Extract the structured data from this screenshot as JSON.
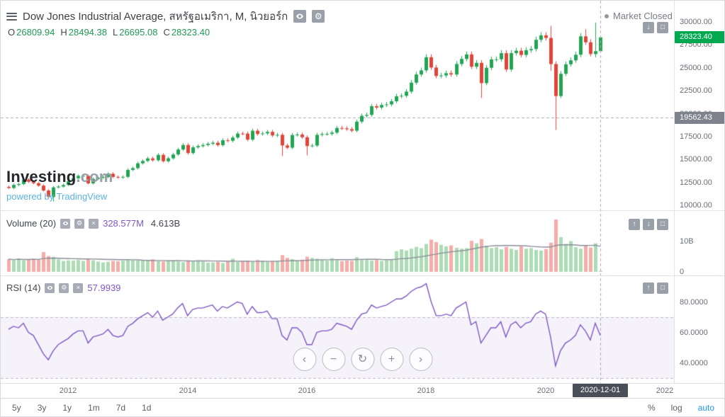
{
  "colors": {
    "up": "#23a455",
    "down": "#e0443a",
    "volume_up": "rgba(103,189,120,0.55)",
    "volume_down": "rgba(235,106,98,0.55)",
    "volume_ma": "#8a8e99",
    "rsi": "#7e57c2",
    "rsi_band_fill": "rgba(126,87,194,0.08)",
    "band_line": "#b6b9c4",
    "crosshair": "#a9adb8",
    "last_price_bg": "#00a84f",
    "price_line_bg": "#7e828d",
    "accent_blue": "#2196f3",
    "link_blue": "#5bb3e4",
    "ohlc_value": "#1f9954"
  },
  "header": {
    "title": "Dow Jones Industrial Average, สหรัฐอเมริกา, M, นิวยอร์ก",
    "market_status": "Market Closed",
    "ohlc": {
      "o_label": "O",
      "o": "26809.94",
      "h_label": "H",
      "h": "28494.38",
      "l_label": "L",
      "l": "26695.08",
      "c_label": "C",
      "c": "28323.40"
    }
  },
  "watermark": {
    "brand": "Investing",
    "suffix": ".com",
    "powered": "powered by TradingView"
  },
  "chart_data": [
    {
      "type": "candlestick",
      "name": "Dow Jones Industrial Average",
      "timeframe": "M",
      "x_start": "2011-01",
      "x_end": "2020-12",
      "y_axis": {
        "min": 9400,
        "max": 32300
      },
      "y_ticks": [
        "30000.00",
        "27500.00",
        "25000.00",
        "22500.00",
        "20000.00",
        "17500.00",
        "15000.00",
        "12500.00",
        "10000.00"
      ],
      "closes": [
        11892,
        12226,
        12320,
        12811,
        12570,
        12414,
        12143,
        11614,
        10913,
        11955,
        12046,
        12218,
        12633,
        12952,
        13212,
        13214,
        12393,
        12880,
        13009,
        13091,
        13437,
        13096,
        13026,
        13104,
        13861,
        14054,
        14579,
        14840,
        15116,
        14910,
        15500,
        14810,
        15130,
        15546,
        16086,
        16577,
        15699,
        16322,
        16458,
        16581,
        16717,
        16827,
        16563,
        17098,
        17043,
        17391,
        17828,
        17823,
        17165,
        18133,
        17776,
        17841,
        18011,
        17620,
        17690,
        16528,
        16285,
        17664,
        17720,
        17425,
        16466,
        16517,
        17685,
        17774,
        17787,
        17930,
        18432,
        18401,
        18308,
        18142,
        19124,
        19763,
        19864,
        20812,
        20663,
        20941,
        21009,
        21350,
        21891,
        21948,
        22405,
        23377,
        24272,
        24719,
        26149,
        25029,
        24103,
        24163,
        24416,
        24271,
        25415,
        25965,
        26458,
        25116,
        25538,
        23327,
        25000,
        25916,
        25929,
        26593,
        24815,
        26600,
        26864,
        26403,
        26917,
        27046,
        28051,
        28538,
        28256,
        25409,
        21917,
        24346,
        25383,
        25813,
        26428,
        28430,
        27782,
        26502,
        26809.94,
        28323.4
      ],
      "special_highs": {
        "109": 29569,
        "116": 29199,
        "118": 29933
      },
      "special_lows": {
        "9": 10404,
        "55": 15370,
        "60": 15450,
        "95": 21713,
        "109": 24681,
        "110": 18214,
        "118": 26145
      },
      "last_ohlc": {
        "o": 26809.94,
        "h": 28494.38,
        "l": 26695.08,
        "c": 28323.4
      },
      "last_price_label": "28323.40",
      "price_line": 19562.43,
      "price_line_label": "19562.43"
    },
    {
      "type": "bar",
      "legend": "Volume (20)",
      "current_label": "328.577M",
      "ma_label": "4.613B",
      "y_axis": {
        "min": 0,
        "max": 21
      },
      "y_ticks": [
        "10B",
        "0"
      ],
      "y_tick_values": [
        10,
        0
      ],
      "values_billions": [
        4.2,
        3.9,
        4.4,
        3.8,
        4.1,
        4.3,
        4.0,
        6.5,
        5.2,
        4.9,
        4.1,
        3.6,
        3.8,
        3.7,
        3.9,
        3.6,
        4.2,
        3.8,
        3.4,
        3.1,
        3.3,
        3.6,
        3.5,
        3.7,
        3.9,
        3.8,
        3.7,
        3.9,
        3.8,
        4.1,
        3.5,
        3.4,
        3.6,
        3.7,
        3.4,
        3.2,
        3.6,
        3.5,
        3.8,
        3.4,
        3.0,
        3.1,
        3.3,
        2.9,
        3.4,
        4.3,
        3.3,
        3.5,
        3.7,
        3.4,
        3.9,
        3.5,
        3.3,
        3.6,
        3.7,
        5.5,
        4.6,
        4.2,
        3.7,
        4.0,
        5.0,
        4.6,
        4.3,
        3.8,
        3.7,
        4.5,
        3.8,
        3.5,
        3.7,
        3.6,
        4.8,
        4.2,
        3.9,
        3.7,
        3.9,
        3.6,
        3.8,
        3.9,
        6.8,
        7.4,
        7.0,
        7.6,
        8.2,
        7.8,
        9.2,
        10.6,
        9.8,
        8.9,
        8.4,
        8.7,
        7.9,
        7.6,
        7.8,
        10.2,
        9.4,
        10.8,
        8.6,
        7.8,
        8.1,
        7.4,
        8.2,
        7.6,
        7.2,
        8.4,
        7.6,
        7.8,
        7.2,
        7.0,
        7.5,
        9.6,
        17.2,
        11.4,
        9.2,
        10.1,
        8.1,
        7.6,
        8.6,
        8.0,
        9.4,
        0.329
      ]
    },
    {
      "type": "line",
      "legend": "RSI (14)",
      "current_label": "57.9939",
      "y_axis": {
        "min": 25,
        "max": 95
      },
      "y_ticks": [
        "80.0000",
        "60.0000",
        "40.0000"
      ],
      "y_tick_values": [
        80,
        60,
        40
      ],
      "bands": [
        70,
        30
      ],
      "values": [
        62,
        64,
        63,
        66,
        60,
        58,
        52,
        46,
        42,
        48,
        52,
        54,
        56,
        59,
        61,
        61,
        53,
        57,
        58,
        59,
        62,
        58,
        57,
        58,
        64,
        66,
        69,
        71,
        73,
        70,
        74,
        68,
        70,
        72,
        76,
        79,
        71,
        75,
        76,
        76,
        77,
        78,
        74,
        77,
        76,
        78,
        80,
        79,
        72,
        77,
        73,
        73,
        74,
        69,
        69,
        58,
        55,
        63,
        63,
        60,
        52,
        52,
        60,
        61,
        61,
        62,
        66,
        65,
        64,
        62,
        68,
        72,
        73,
        78,
        76,
        77,
        78,
        80,
        82,
        82,
        84,
        87,
        89,
        90,
        92,
        80,
        71,
        71,
        72,
        71,
        76,
        78,
        80,
        65,
        67,
        53,
        58,
        63,
        63,
        67,
        57,
        65,
        67,
        63,
        66,
        67,
        72,
        74,
        72,
        57,
        38,
        48,
        53,
        55,
        58,
        65,
        61,
        55,
        66,
        58
      ]
    }
  ],
  "time_axis": {
    "ticks": [
      {
        "label": "2012",
        "month_index": 12
      },
      {
        "label": "2014",
        "month_index": 36
      },
      {
        "label": "2016",
        "month_index": 60
      },
      {
        "label": "2018",
        "month_index": 84
      },
      {
        "label": "2020",
        "month_index": 108
      },
      {
        "label": "2022",
        "month_index": 132
      }
    ],
    "cursor": {
      "label": "2020-12-01",
      "month_index": 119
    }
  },
  "controls": {
    "nav": [
      {
        "name": "pan-left",
        "glyph": "‹"
      },
      {
        "name": "zoom-out",
        "glyph": "−"
      },
      {
        "name": "reset-zoom",
        "glyph": "↻"
      },
      {
        "name": "zoom-in",
        "glyph": "+"
      },
      {
        "name": "pan-right",
        "glyph": "›"
      }
    ],
    "pane_buttons": {
      "main": [
        {
          "name": "move-pane-down",
          "glyph": "↓"
        },
        {
          "name": "maximize-pane",
          "glyph": "□"
        }
      ],
      "volume": [
        {
          "name": "move-pane-up",
          "glyph": "↑"
        },
        {
          "name": "move-pane-down",
          "glyph": "↓"
        },
        {
          "name": "maximize-pane",
          "glyph": "□"
        }
      ],
      "rsi": [
        {
          "name": "move-pane-up",
          "glyph": "↑"
        },
        {
          "name": "maximize-pane",
          "glyph": "□"
        }
      ]
    },
    "legend_tools": {
      "gear": "⚙",
      "close": "×"
    }
  },
  "toolbar": {
    "ranges": [
      "5y",
      "3y",
      "1y",
      "1m",
      "7d",
      "1d"
    ],
    "scales": [
      "%",
      "log",
      "auto"
    ],
    "active_scale": "auto"
  }
}
